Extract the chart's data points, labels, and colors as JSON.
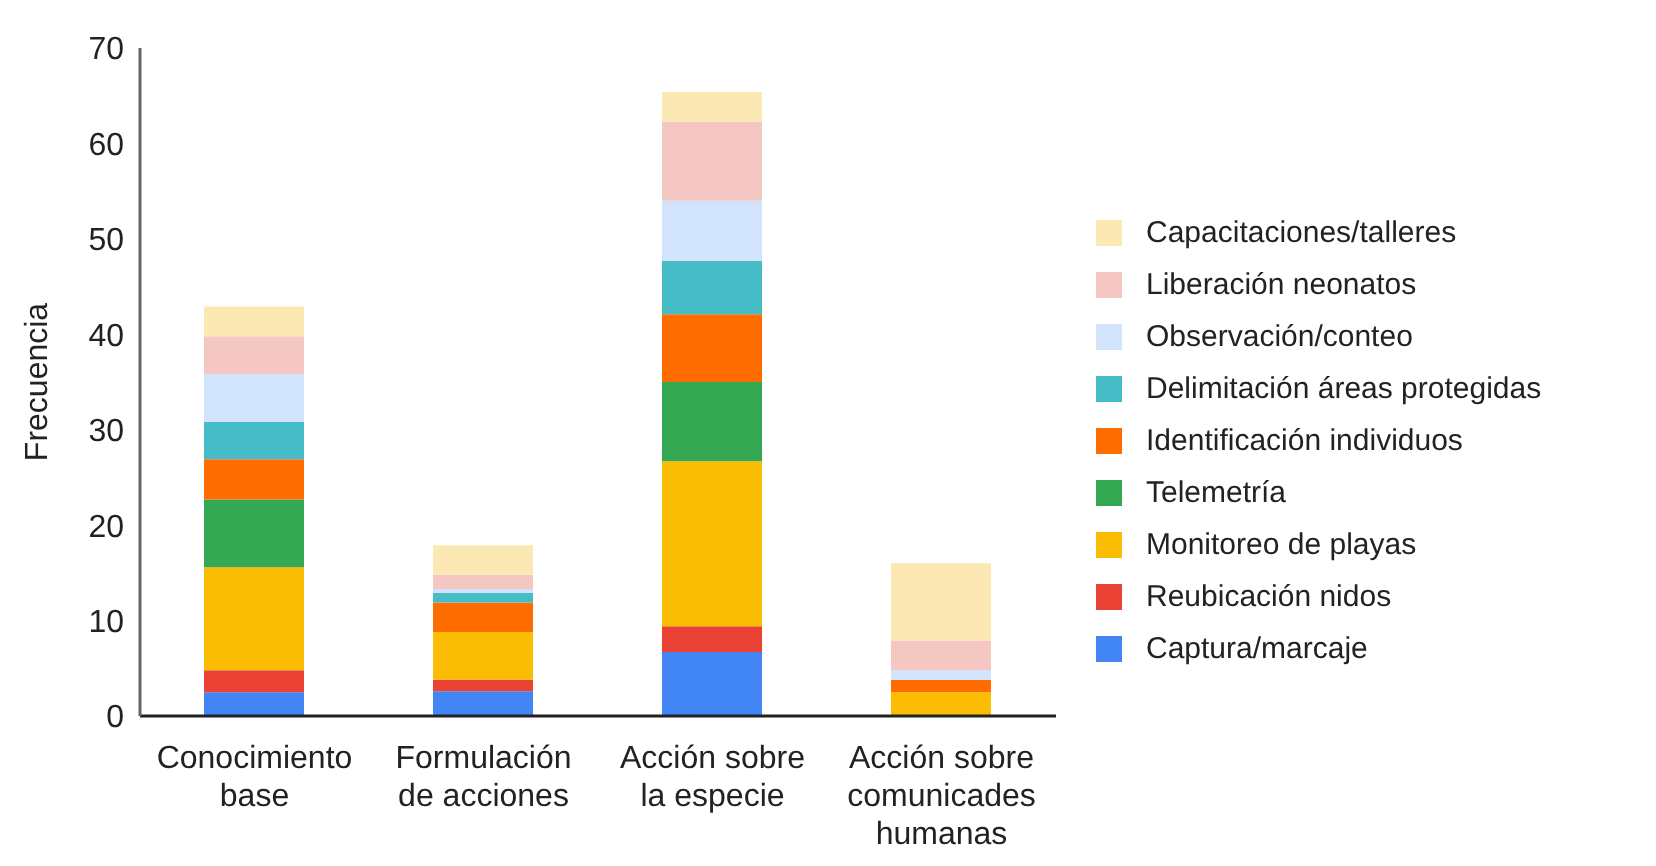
{
  "chart_data": {
    "type": "bar",
    "stacked": true,
    "ylabel": "Frecuencia",
    "categories": [
      "Conocimiento base",
      "Formulación de acciones",
      "Acción sobre la especie",
      "Acción sobre comunicades humanas"
    ],
    "ylim": [
      0,
      70
    ],
    "yticks": [
      0,
      10,
      20,
      30,
      40,
      50,
      60,
      70
    ],
    "legend": "right",
    "series": [
      {
        "name": "Captura/marcaje",
        "color": "#4285f4",
        "values": [
          2.5,
          2.6,
          6.7,
          0
        ]
      },
      {
        "name": "Reubicación nidos",
        "color": "#ea4335",
        "values": [
          2.3,
          1.2,
          2.7,
          0
        ]
      },
      {
        "name": "Monitoreo de playas",
        "color": "#fbbc04",
        "values": [
          10.8,
          5.0,
          17.3,
          2.5
        ]
      },
      {
        "name": "Telemetría",
        "color": "#34a853",
        "values": [
          7.1,
          0,
          8.3,
          0
        ]
      },
      {
        "name": "Identificación individuos",
        "color": "#ff6d01",
        "values": [
          4.2,
          3.1,
          7.1,
          1.3
        ]
      },
      {
        "name": "Delimitación áreas protegidas",
        "color": "#46bdc6",
        "values": [
          3.9,
          1.0,
          5.6,
          0
        ]
      },
      {
        "name": "Observación/conteo",
        "color": "#d2e3fc",
        "values": [
          5.0,
          0.4,
          6.3,
          1.0
        ]
      },
      {
        "name": "Liberación neonatos",
        "color": "#f4c7c3",
        "values": [
          4.0,
          1.5,
          8.3,
          3.1
        ]
      },
      {
        "name": "Capacitaciones/talleres",
        "color": "#fce8b2",
        "values": [
          3.1,
          3.1,
          3.1,
          8.1
        ]
      }
    ]
  }
}
